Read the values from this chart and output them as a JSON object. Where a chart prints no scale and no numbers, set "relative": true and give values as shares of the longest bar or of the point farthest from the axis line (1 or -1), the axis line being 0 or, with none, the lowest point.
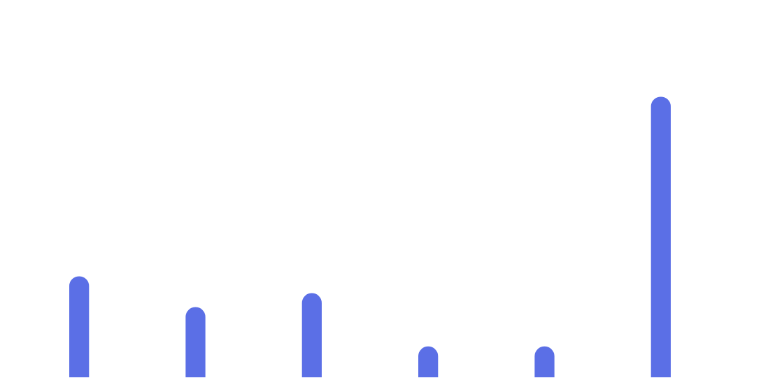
{
  "chart_data": {
    "type": "bar",
    "relative": true,
    "categories": [
      null,
      null,
      null,
      null,
      null,
      null
    ],
    "values": [
      0.36,
      0.25,
      0.3,
      0.11,
      0.11,
      1
    ],
    "color": "#5b6fe6"
  }
}
